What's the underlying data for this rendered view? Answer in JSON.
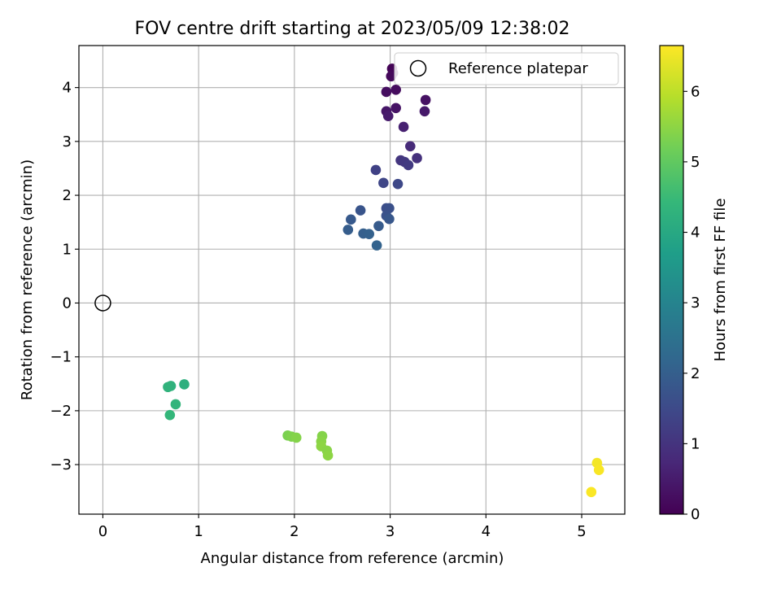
{
  "chart_data": {
    "type": "scatter",
    "title": "FOV centre drift starting at 2023/05/09 12:38:02",
    "xlabel": "Angular distance from reference (arcmin)",
    "ylabel": "Rotation from reference (arcmin)",
    "xlim": [
      -0.25,
      5.45
    ],
    "ylim": [
      -3.92,
      4.78
    ],
    "xticks": [
      0,
      1,
      2,
      3,
      4,
      5
    ],
    "yticks": [
      -3,
      -2,
      -1,
      0,
      1,
      2,
      3,
      4
    ],
    "xtick_labels": [
      "0",
      "1",
      "2",
      "3",
      "4",
      "5"
    ],
    "ytick_labels": [
      "−3",
      "−2",
      "−1",
      "0",
      "1",
      "2",
      "3",
      "4"
    ],
    "grid": true,
    "legend": {
      "position": "top-right",
      "entries": [
        "Reference platepar"
      ]
    },
    "reference_point": {
      "x": 0,
      "y": 0
    },
    "colorbar": {
      "label": "Hours from first FF file",
      "range": [
        0,
        6.65
      ],
      "ticks": [
        0,
        1,
        2,
        3,
        4,
        5,
        6
      ],
      "tick_labels": [
        "0",
        "1",
        "2",
        "3",
        "4",
        "5",
        "6"
      ],
      "colormap": [
        "#440154",
        "#482878",
        "#3e4989",
        "#31688e",
        "#26828e",
        "#1f9e89",
        "#35b779",
        "#6ece58",
        "#b5de2b",
        "#fde725"
      ]
    },
    "points": [
      {
        "x": 3.02,
        "y": 4.35,
        "t": 0.05
      },
      {
        "x": 3.03,
        "y": 4.27,
        "t": 0.1
      },
      {
        "x": 3.01,
        "y": 4.21,
        "t": 0.15
      },
      {
        "x": 3.06,
        "y": 3.96,
        "t": 0.2
      },
      {
        "x": 2.96,
        "y": 3.92,
        "t": 0.25
      },
      {
        "x": 3.37,
        "y": 3.77,
        "t": 0.3
      },
      {
        "x": 3.06,
        "y": 3.62,
        "t": 0.35
      },
      {
        "x": 2.96,
        "y": 3.56,
        "t": 0.4
      },
      {
        "x": 3.36,
        "y": 3.56,
        "t": 0.45
      },
      {
        "x": 2.98,
        "y": 3.47,
        "t": 0.5
      },
      {
        "x": 3.14,
        "y": 3.27,
        "t": 0.6
      },
      {
        "x": 3.21,
        "y": 2.91,
        "t": 0.8
      },
      {
        "x": 3.28,
        "y": 2.69,
        "t": 0.95
      },
      {
        "x": 3.11,
        "y": 2.65,
        "t": 1.05
      },
      {
        "x": 3.15,
        "y": 2.62,
        "t": 1.1
      },
      {
        "x": 3.19,
        "y": 2.56,
        "t": 1.15
      },
      {
        "x": 2.85,
        "y": 2.47,
        "t": 1.3
      },
      {
        "x": 2.93,
        "y": 2.23,
        "t": 1.4
      },
      {
        "x": 3.08,
        "y": 2.21,
        "t": 1.45
      },
      {
        "x": 2.96,
        "y": 1.76,
        "t": 1.6
      },
      {
        "x": 2.99,
        "y": 1.76,
        "t": 1.65
      },
      {
        "x": 2.69,
        "y": 1.72,
        "t": 1.75
      },
      {
        "x": 2.96,
        "y": 1.62,
        "t": 1.7
      },
      {
        "x": 2.99,
        "y": 1.56,
        "t": 1.8
      },
      {
        "x": 2.59,
        "y": 1.55,
        "t": 1.85
      },
      {
        "x": 2.88,
        "y": 1.43,
        "t": 1.9
      },
      {
        "x": 2.56,
        "y": 1.36,
        "t": 1.95
      },
      {
        "x": 2.72,
        "y": 1.29,
        "t": 2.0
      },
      {
        "x": 2.78,
        "y": 1.28,
        "t": 2.05
      },
      {
        "x": 2.86,
        "y": 1.07,
        "t": 2.1
      },
      {
        "x": 0.85,
        "y": -1.51,
        "t": 4.2
      },
      {
        "x": 0.71,
        "y": -1.54,
        "t": 4.25
      },
      {
        "x": 0.68,
        "y": -1.56,
        "t": 4.3
      },
      {
        "x": 0.76,
        "y": -1.88,
        "t": 4.35
      },
      {
        "x": 0.7,
        "y": -2.08,
        "t": 4.4
      },
      {
        "x": 1.93,
        "y": -2.46,
        "t": 5.3
      },
      {
        "x": 1.97,
        "y": -2.48,
        "t": 5.35
      },
      {
        "x": 2.02,
        "y": -2.5,
        "t": 5.4
      },
      {
        "x": 2.29,
        "y": -2.47,
        "t": 5.4
      },
      {
        "x": 2.28,
        "y": -2.57,
        "t": 5.45
      },
      {
        "x": 2.28,
        "y": -2.66,
        "t": 5.5
      },
      {
        "x": 2.34,
        "y": -2.74,
        "t": 5.45
      },
      {
        "x": 2.35,
        "y": -2.83,
        "t": 5.5
      },
      {
        "x": 5.16,
        "y": -2.97,
        "t": 6.55
      },
      {
        "x": 5.18,
        "y": -3.1,
        "t": 6.6
      },
      {
        "x": 5.1,
        "y": -3.51,
        "t": 6.62
      }
    ]
  }
}
